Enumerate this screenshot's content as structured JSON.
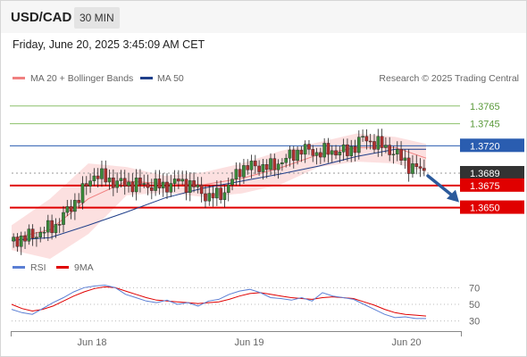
{
  "header": {
    "symbol": "USD/CAD",
    "timeframe": "30 MIN"
  },
  "datetime": "Friday, June 20, 2025 3:45:09 AM CET",
  "legend": {
    "items": [
      {
        "label": "MA 20 + Bollinger Bands",
        "color": "#f08080"
      },
      {
        "label": "MA 50",
        "color": "#1f3f8a"
      }
    ],
    "credit": "Research © 2025 Trading Central"
  },
  "rsi_legend": {
    "items": [
      {
        "label": "RSI",
        "color": "#5b7fd4"
      },
      {
        "label": "9MA",
        "color": "#e00000"
      }
    ]
  },
  "chart_data": [
    {
      "type": "candlestick",
      "title": "USD/CAD",
      "timeframe": "30 MIN",
      "x_ticks": [
        "Jun 18",
        "Jun 19",
        "Jun 20"
      ],
      "ylim": [
        1.3595,
        1.3785
      ],
      "current_price": "1.3689",
      "levels": [
        {
          "value": 1.3765,
          "label": "1.3765",
          "kind": "resistance",
          "color": "#8cc06a"
        },
        {
          "value": 1.3745,
          "label": "1.3745",
          "kind": "resistance",
          "color": "#8cc06a"
        },
        {
          "value": 1.372,
          "label": "1.3720",
          "kind": "pivot",
          "color": "#2a5db0"
        },
        {
          "value": 1.3689,
          "label": "1.3689",
          "kind": "last-price",
          "color": "#333333"
        },
        {
          "value": 1.3675,
          "label": "1.3675",
          "kind": "support",
          "color": "#e00000"
        },
        {
          "value": 1.365,
          "label": "1.3650",
          "kind": "support",
          "color": "#e00000"
        }
      ],
      "forecast_arrow": {
        "from": 1.3686,
        "to": 1.3655,
        "direction": "down",
        "color": "#2b5a9b"
      },
      "price_path": [
        [
          0,
          1.3612
        ],
        [
          6,
          1.3618
        ],
        [
          12,
          1.363
        ],
        [
          18,
          1.3662
        ],
        [
          22,
          1.3688
        ],
        [
          28,
          1.3678
        ],
        [
          34,
          1.3676
        ],
        [
          40,
          1.3674
        ],
        [
          44,
          1.368
        ],
        [
          48,
          1.3674
        ],
        [
          52,
          1.3661
        ],
        [
          56,
          1.3668
        ],
        [
          60,
          1.3694
        ],
        [
          64,
          1.3697
        ],
        [
          68,
          1.3696
        ],
        [
          72,
          1.3705
        ],
        [
          76,
          1.3716
        ],
        [
          80,
          1.3712
        ],
        [
          84,
          1.3714
        ],
        [
          88,
          1.3713
        ],
        [
          92,
          1.3728
        ],
        [
          96,
          1.3722
        ],
        [
          100,
          1.3713
        ],
        [
          104,
          1.3698
        ],
        [
          108,
          1.3691
        ]
      ],
      "ma20": [
        [
          0,
          1.3615
        ],
        [
          10,
          1.3625
        ],
        [
          20,
          1.366
        ],
        [
          30,
          1.368
        ],
        [
          40,
          1.3677
        ],
        [
          50,
          1.3676
        ],
        [
          60,
          1.3683
        ],
        [
          70,
          1.3695
        ],
        [
          80,
          1.371
        ],
        [
          90,
          1.3718
        ],
        [
          100,
          1.3718
        ],
        [
          108,
          1.3706
        ]
      ],
      "bb_upper": [
        [
          0,
          1.363
        ],
        [
          10,
          1.366
        ],
        [
          20,
          1.37
        ],
        [
          30,
          1.3696
        ],
        [
          40,
          1.3686
        ],
        [
          50,
          1.369
        ],
        [
          60,
          1.37
        ],
        [
          70,
          1.3714
        ],
        [
          80,
          1.3724
        ],
        [
          90,
          1.3734
        ],
        [
          100,
          1.373
        ],
        [
          108,
          1.3722
        ]
      ],
      "bb_lower": [
        [
          0,
          1.3602
        ],
        [
          10,
          1.3592
        ],
        [
          20,
          1.362
        ],
        [
          30,
          1.3664
        ],
        [
          40,
          1.3667
        ],
        [
          50,
          1.3662
        ],
        [
          60,
          1.3666
        ],
        [
          70,
          1.3676
        ],
        [
          80,
          1.3696
        ],
        [
          90,
          1.3702
        ],
        [
          100,
          1.37
        ],
        [
          108,
          1.369
        ]
      ],
      "ma50": [
        [
          0,
          1.3613
        ],
        [
          10,
          1.3616
        ],
        [
          20,
          1.363
        ],
        [
          30,
          1.3645
        ],
        [
          40,
          1.3661
        ],
        [
          50,
          1.3672
        ],
        [
          60,
          1.368
        ],
        [
          70,
          1.3688
        ],
        [
          80,
          1.3697
        ],
        [
          90,
          1.3708
        ],
        [
          100,
          1.3716
        ],
        [
          108,
          1.3716
        ]
      ]
    },
    {
      "type": "line",
      "title": "RSI",
      "ylim": [
        20,
        80
      ],
      "y_ticks": [
        70,
        50,
        30
      ],
      "series": [
        {
          "name": "RSI",
          "color": "#5b7fd4",
          "values": [
            44,
            40,
            38,
            45,
            52,
            58,
            65,
            70,
            72,
            73,
            70,
            62,
            58,
            54,
            52,
            55,
            50,
            52,
            48,
            54,
            56,
            62,
            66,
            68,
            64,
            58,
            57,
            55,
            58,
            54,
            64,
            60,
            58,
            56,
            50,
            44,
            38,
            34,
            35,
            33,
            33
          ]
        },
        {
          "name": "9MA",
          "color": "#e00000",
          "values": [
            50,
            45,
            42,
            44,
            48,
            54,
            60,
            65,
            69,
            71,
            70,
            66,
            62,
            58,
            55,
            54,
            53,
            52,
            51,
            52,
            53,
            56,
            60,
            63,
            64,
            62,
            60,
            58,
            57,
            56,
            58,
            59,
            58,
            57,
            53,
            49,
            44,
            40,
            38,
            37,
            36
          ]
        }
      ]
    }
  ]
}
